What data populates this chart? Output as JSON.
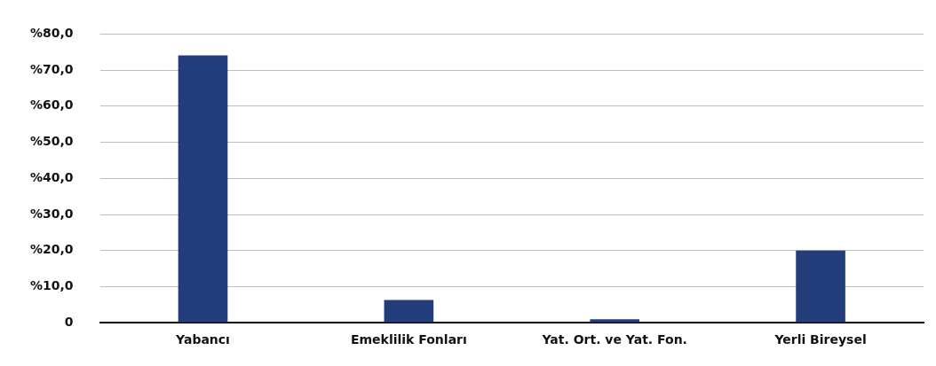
{
  "chart_data": {
    "type": "bar",
    "categories": [
      "Yabancı",
      "Emeklilik Fonları",
      "Yat. Ort. ve Yat. Fon.",
      "Yerli Bireysel"
    ],
    "values": [
      74.1,
      6.3,
      1.0,
      20.0
    ],
    "color": "#233d7a",
    "ylim": [
      0,
      80
    ],
    "yticks": [
      {
        "value": 0,
        "label": "0"
      },
      {
        "value": 10,
        "label": "%10,0"
      },
      {
        "value": 20,
        "label": "%20,0"
      },
      {
        "value": 30,
        "label": "%30,0"
      },
      {
        "value": 40,
        "label": "%40,0"
      },
      {
        "value": 50,
        "label": "%50,0"
      },
      {
        "value": 60,
        "label": "%60,0"
      },
      {
        "value": 70,
        "label": "%70,0"
      },
      {
        "value": 80,
        "label": "%80,0"
      }
    ],
    "grid": "y",
    "legend": false
  }
}
